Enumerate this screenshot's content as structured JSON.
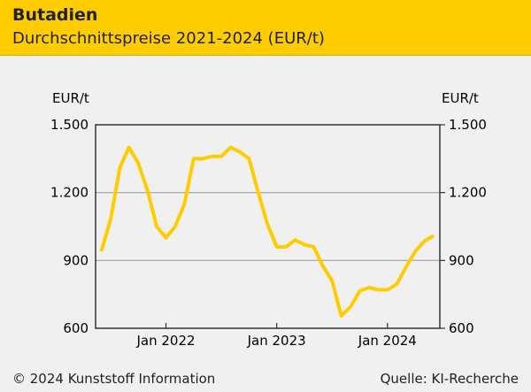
{
  "header": {
    "title": "Butadien",
    "subtitle": "Durchschnittspreise 2021-2024 (EUR/t)"
  },
  "footer": {
    "copyright": "© 2024 Kunststoff Information",
    "source": "Quelle: KI-Recherche"
  },
  "colors": {
    "line": "#ffcc00",
    "header": "#ffcc00",
    "grid": "#a0a0a0"
  },
  "chart_data": {
    "type": "line",
    "title": "Butadien",
    "subtitle": "Durchschnittspreise 2021-2024 (EUR/t)",
    "ylabel": "EUR/t",
    "ylabel_right": "EUR/t",
    "ylim": [
      600,
      1500
    ],
    "yticks": [
      600,
      900,
      1200,
      1500
    ],
    "ytick_labels": [
      "600",
      "900",
      "1.200",
      "1.500"
    ],
    "xtick_labels": [
      {
        "label": "Jan 2022",
        "index": 7
      },
      {
        "label": "Jan 2023",
        "index": 19
      },
      {
        "label": "Jan 2024",
        "index": 31
      }
    ],
    "grid": true,
    "x": [
      "2021-06",
      "2021-07",
      "2021-08",
      "2021-09",
      "2021-10",
      "2021-11",
      "2021-12",
      "2022-01",
      "2022-02",
      "2022-03",
      "2022-04",
      "2022-05",
      "2022-06",
      "2022-07",
      "2022-08",
      "2022-09",
      "2022-10",
      "2022-11",
      "2022-12",
      "2023-01",
      "2023-02",
      "2023-03",
      "2023-04",
      "2023-05",
      "2023-06",
      "2023-07",
      "2023-08",
      "2023-09",
      "2023-10",
      "2023-11",
      "2023-12",
      "2024-01",
      "2024-02",
      "2024-03",
      "2024-04",
      "2024-05",
      "2024-06"
    ],
    "series": [
      {
        "name": "Butadien",
        "values": [
          940,
          1080,
          1310,
          1400,
          1330,
          1210,
          1050,
          1000,
          1050,
          1150,
          1350,
          1350,
          1360,
          1360,
          1400,
          1380,
          1350,
          1200,
          1060,
          960,
          960,
          990,
          970,
          960,
          875,
          810,
          655,
          695,
          765,
          780,
          770,
          770,
          795,
          870,
          940,
          985,
          1010
        ]
      }
    ]
  }
}
